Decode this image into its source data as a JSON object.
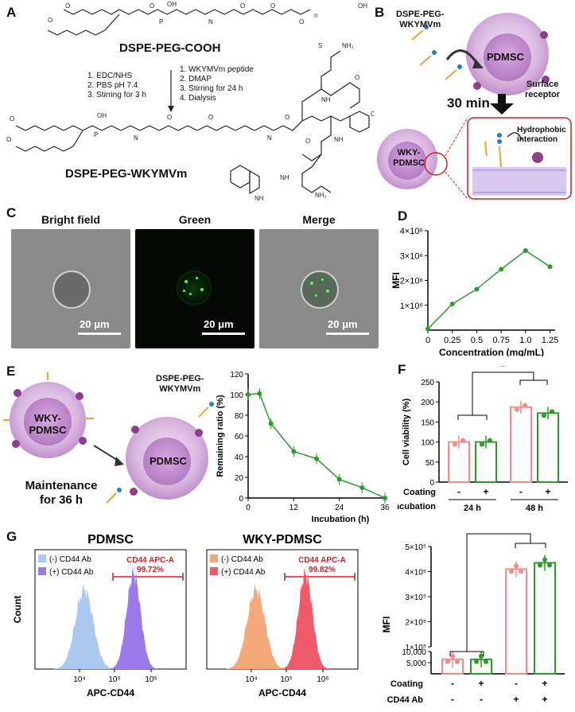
{
  "panels": {
    "a": "A",
    "b": "B",
    "c": "C",
    "d": "D",
    "e": "E",
    "f": "F",
    "g": "G"
  },
  "panelA": {
    "top_compound": "DSPE-PEG-COOH",
    "bottom_compound": "DSPE-PEG-WKYMVm",
    "left_steps": [
      "1. EDC/NHS",
      "2. PBS pH 7.4",
      "3. Stirring for 3 h"
    ],
    "right_steps": [
      "1. WKYMVm peptide",
      "2. DMAP",
      "3. Stirring for 24 h",
      "4. Dialysis"
    ]
  },
  "panelB": {
    "reagent": [
      "DSPE-PEG-",
      "WKYMVm"
    ],
    "cell": "PDMSC",
    "receptor": [
      "Surface",
      "receptor"
    ],
    "time": "30 min",
    "coated_cell": [
      "WKY-",
      "PDMSC"
    ],
    "interaction": [
      "Hydrophobic",
      "interaction"
    ]
  },
  "panelC": {
    "titles": [
      "Bright field",
      "Green",
      "Merge"
    ],
    "scale": "20 μm"
  },
  "panelD": {
    "chart_data": {
      "type": "line",
      "xlabel": "Concentration (mg/mL)",
      "ylabel": "MFI",
      "x": [
        0,
        0.25,
        0.5,
        0.75,
        1.0,
        1.25
      ],
      "values": [
        0.05,
        1.05,
        1.65,
        2.45,
        3.2,
        2.55
      ],
      "x_ticks": [
        "0",
        "0.25",
        "0.5",
        "0.75",
        "1.0",
        "1.25"
      ],
      "y_ticks": [
        "1×10⁶",
        "2×10⁶",
        "3×10⁶",
        "4×10⁶"
      ],
      "color": "#2e9a2e"
    }
  },
  "panelE": {
    "coated_cell": [
      "WKY-",
      "PDMSC"
    ],
    "cell": "PDMSC",
    "reagent": [
      "DSPE-PEG-",
      "WKYMVm"
    ],
    "maintenance": [
      "Maintenance",
      "for 36 h"
    ],
    "chart_data": {
      "type": "line",
      "xlabel": "Incubation (h)",
      "ylabel": "Remaining ratio (%)",
      "x": [
        0,
        3,
        6,
        12,
        18,
        24,
        30,
        36
      ],
      "values": [
        100,
        101,
        72,
        45,
        38,
        18,
        10,
        0
      ],
      "x_ticks": [
        "0",
        "12",
        "24",
        "36"
      ],
      "y_ticks": [
        "0",
        "20",
        "40",
        "60",
        "80",
        "100",
        "120"
      ],
      "color": "#2e9a2e"
    }
  },
  "panelF": {
    "chart_data": {
      "type": "bar",
      "ylabel": "Cell viability (%)",
      "values": [
        100,
        100,
        187,
        172
      ],
      "colors": [
        "#f08c8c",
        "#2e9a2e",
        "#f08c8c",
        "#2e9a2e"
      ],
      "y_ticks": [
        "0",
        "50",
        "100",
        "150",
        "200",
        "250"
      ],
      "coating": [
        "-",
        "+",
        "-",
        "+"
      ],
      "groups": [
        "24 h",
        "48 h"
      ],
      "row_labels": [
        "Coating",
        "Incubation"
      ],
      "significance": "*"
    }
  },
  "panelG": {
    "hist1": {
      "title": "PDMSC",
      "legend": [
        "(-) CD44 Ab",
        "(+) CD44 Ab"
      ],
      "gate_label": "CD44 APC-A",
      "gate_value": "99.72%",
      "colors": [
        "#aac8f0",
        "#9a7ae8"
      ]
    },
    "hist2": {
      "title": "WKY-PDMSC",
      "legend": [
        "(-) CD44 Ab",
        "(+) CD44 Ab"
      ],
      "gate_label": "CD44 APC-A",
      "gate_value": "99.82%",
      "colors": [
        "#f4a87a",
        "#ee5a6a"
      ]
    },
    "xlabel": "APC-CD44",
    "ylabel": "Count",
    "x_ticks": [
      "10⁴",
      "10⁵",
      "10⁶"
    ],
    "bar_chart_data": {
      "type": "bar",
      "ylabel": "MFI",
      "values": [
        6500,
        6500,
        410000,
        435000
      ],
      "colors": [
        "#f08c8c",
        "#2e9a2e",
        "#f08c8c",
        "#2e9a2e"
      ],
      "y_ticks_low": [
        "5,000",
        "10,000"
      ],
      "y_ticks_high": [
        "1×10⁵",
        "2×10⁵",
        "3×10⁵",
        "4×10⁵",
        "5×10⁵"
      ],
      "coating": [
        "-",
        "+",
        "-",
        "+"
      ],
      "cd44": [
        "-",
        "-",
        "+",
        "+"
      ],
      "row_labels": [
        "Coating",
        "CD44 Ab"
      ],
      "significance": "*"
    }
  }
}
